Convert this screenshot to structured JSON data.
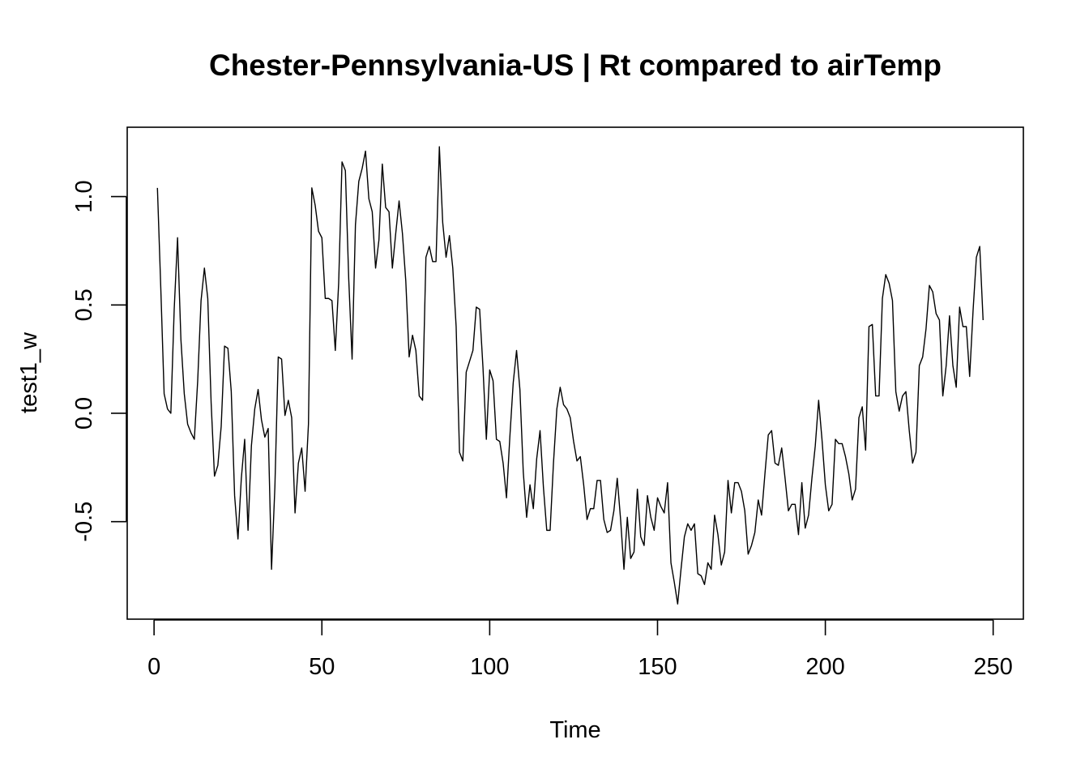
{
  "chart_data": {
    "type": "line",
    "title": "Chester-Pennsylvania-US | Rt compared to airTemp",
    "xlabel": "Time",
    "ylabel": "test1_w",
    "xlim": [
      -8,
      259
    ],
    "ylim": [
      -0.95,
      1.32
    ],
    "x_ticks": [
      0,
      50,
      100,
      150,
      200,
      250
    ],
    "x_tick_labels": [
      "0",
      "50",
      "100",
      "150",
      "200",
      "250"
    ],
    "y_ticks": [
      -0.5,
      0.0,
      0.5,
      1.0
    ],
    "y_tick_labels": [
      "-0.5",
      "0.0",
      "0.5",
      "1.0"
    ],
    "grid": false,
    "line_color": "#000000",
    "series": [
      {
        "x_start": 1,
        "x_step": 1,
        "values": [
          1.04,
          0.58,
          0.09,
          0.02,
          0.0,
          0.48,
          0.81,
          0.34,
          0.09,
          -0.05,
          -0.09,
          -0.12,
          0.15,
          0.52,
          0.67,
          0.53,
          0.05,
          -0.29,
          -0.24,
          -0.06,
          0.31,
          0.3,
          0.1,
          -0.38,
          -0.58,
          -0.3,
          -0.12,
          -0.54,
          -0.15,
          0.02,
          0.11,
          -0.03,
          -0.11,
          -0.07,
          -0.72,
          -0.34,
          0.26,
          0.25,
          -0.01,
          0.06,
          -0.02,
          -0.46,
          -0.23,
          -0.16,
          -0.36,
          -0.05,
          1.04,
          0.96,
          0.84,
          0.81,
          0.53,
          0.53,
          0.52,
          0.29,
          0.6,
          1.16,
          1.12,
          0.62,
          0.25,
          0.87,
          1.07,
          1.13,
          1.21,
          0.99,
          0.93,
          0.67,
          0.8,
          1.15,
          0.95,
          0.93,
          0.67,
          0.83,
          0.98,
          0.83,
          0.61,
          0.26,
          0.36,
          0.29,
          0.08,
          0.06,
          0.72,
          0.77,
          0.7,
          0.7,
          1.23,
          0.88,
          0.72,
          0.82,
          0.67,
          0.4,
          -0.18,
          -0.22,
          0.19,
          0.24,
          0.29,
          0.49,
          0.48,
          0.21,
          -0.12,
          0.2,
          0.15,
          -0.12,
          -0.13,
          -0.23,
          -0.39,
          -0.11,
          0.14,
          0.29,
          0.11,
          -0.27,
          -0.48,
          -0.33,
          -0.44,
          -0.21,
          -0.08,
          -0.34,
          -0.54,
          -0.54,
          -0.23,
          0.02,
          0.12,
          0.04,
          0.02,
          -0.02,
          -0.13,
          -0.22,
          -0.2,
          -0.33,
          -0.49,
          -0.44,
          -0.44,
          -0.31,
          -0.31,
          -0.49,
          -0.55,
          -0.54,
          -0.45,
          -0.3,
          -0.49,
          -0.72,
          -0.48,
          -0.67,
          -0.64,
          -0.35,
          -0.57,
          -0.61,
          -0.38,
          -0.48,
          -0.54,
          -0.39,
          -0.43,
          -0.46,
          -0.32,
          -0.69,
          -0.78,
          -0.88,
          -0.72,
          -0.57,
          -0.51,
          -0.54,
          -0.51,
          -0.74,
          -0.75,
          -0.79,
          -0.69,
          -0.72,
          -0.47,
          -0.56,
          -0.7,
          -0.64,
          -0.31,
          -0.46,
          -0.32,
          -0.32,
          -0.36,
          -0.45,
          -0.65,
          -0.61,
          -0.55,
          -0.4,
          -0.47,
          -0.28,
          -0.1,
          -0.08,
          -0.23,
          -0.24,
          -0.16,
          -0.3,
          -0.45,
          -0.42,
          -0.42,
          -0.56,
          -0.32,
          -0.53,
          -0.47,
          -0.3,
          -0.15,
          0.06,
          -0.12,
          -0.33,
          -0.45,
          -0.42,
          -0.12,
          -0.14,
          -0.14,
          -0.2,
          -0.28,
          -0.4,
          -0.35,
          -0.02,
          0.03,
          -0.17,
          0.4,
          0.41,
          0.08,
          0.08,
          0.53,
          0.64,
          0.6,
          0.52,
          0.1,
          0.01,
          0.08,
          0.1,
          -0.08,
          -0.23,
          -0.18,
          0.22,
          0.26,
          0.39,
          0.59,
          0.56,
          0.46,
          0.43,
          0.08,
          0.22,
          0.45,
          0.22,
          0.12,
          0.49,
          0.4,
          0.4,
          0.17,
          0.47,
          0.72,
          0.77,
          0.43
        ]
      }
    ]
  }
}
